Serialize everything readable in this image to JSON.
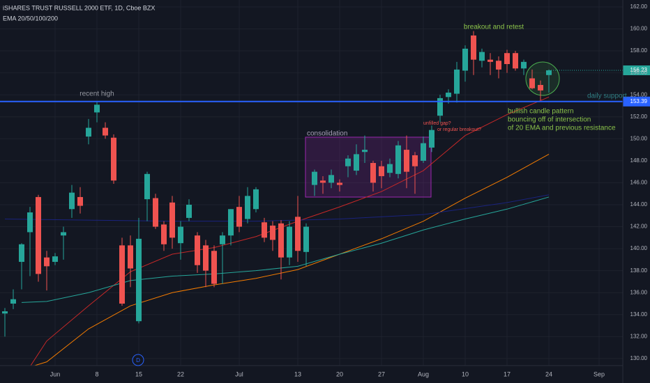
{
  "chart_data": {
    "type": "candlestick",
    "title": "iSHARES TRUST RUSSELL 2000 ETF, 1D, Cboe BZX",
    "subtitle": "EMA 20/50/100/200",
    "categories": [
      null,
      null,
      null,
      null,
      null,
      null,
      "Jun",
      null,
      null,
      null,
      null,
      "8",
      null,
      null,
      null,
      null,
      "15",
      null,
      null,
      null,
      null,
      "22",
      null,
      null,
      null,
      null,
      null,
      null,
      "Jul",
      null,
      null,
      null,
      null,
      null,
      null,
      "13",
      null,
      null,
      null,
      null,
      "20",
      null,
      null,
      null,
      null,
      "27",
      null,
      null,
      null,
      null,
      "Aug",
      null,
      null,
      null,
      null,
      "10",
      null,
      null,
      null,
      null,
      "17",
      null,
      null,
      null,
      null,
      "24",
      null,
      null,
      null,
      null,
      null,
      "Sep"
    ],
    "open": [
      134.1,
      135.0,
      138.8,
      141.5,
      144.7,
      139.2,
      138.8,
      141.2,
      143.6,
      144.7,
      150.2,
      152.4,
      151.0,
      150.1,
      140.3,
      140.3,
      133.4,
      144.5,
      144.6,
      142.2,
      144.2,
      140.5,
      142.8,
      141.2,
      140.3,
      139.8,
      140.4,
      141.2,
      143.8,
      142.7,
      143.6,
      142.4,
      142.1,
      142.3,
      139.2,
      142.9,
      139.7,
      145.8,
      146.2,
      146.0,
      146.0,
      147.5,
      147.1,
      148.8,
      147.8,
      147.5,
      146.9,
      146.8,
      149.0,
      148.5,
      148.0,
      149.2,
      152.1,
      153.8,
      154.1,
      156.2,
      159.4,
      157.1,
      157.2,
      157.1,
      157.8,
      157.8,
      156.4,
      155.5,
      154.9,
      155.8,
      null,
      null,
      null,
      null,
      null,
      null
    ],
    "high": [
      134.6,
      136.3,
      140.5,
      143.8,
      144.9,
      139.8,
      139.6,
      142.0,
      145.8,
      145.6,
      151.8,
      153.4,
      151.5,
      150.4,
      141.0,
      141.2,
      142.8,
      147.0,
      145.0,
      142.5,
      144.8,
      142.5,
      144.5,
      141.5,
      140.8,
      140.3,
      141.5,
      143.6,
      144.8,
      145.6,
      145.6,
      142.8,
      142.5,
      142.6,
      142.5,
      144.8,
      142.3,
      147.2,
      146.6,
      147.2,
      146.3,
      148.5,
      149.5,
      150.3,
      148.0,
      148.0,
      148.2,
      149.8,
      150.3,
      148.8,
      150.2,
      151.2,
      154.0,
      154.5,
      157.0,
      158.5,
      159.8,
      158.2,
      157.8,
      157.5,
      158.1,
      158.0,
      157.2,
      156.3,
      155.3,
      156.3,
      null,
      null,
      null,
      null,
      null,
      null
    ],
    "low": [
      132.0,
      134.5,
      136.3,
      137.5,
      137.0,
      136.2,
      138.5,
      139.0,
      142.8,
      143.2,
      149.5,
      151.5,
      150.0,
      145.9,
      134.8,
      136.5,
      133.2,
      142.5,
      141.8,
      139.8,
      140.0,
      139.0,
      142.5,
      137.8,
      136.5,
      136.5,
      136.8,
      140.3,
      141.5,
      142.3,
      143.3,
      140.6,
      139.8,
      137.2,
      138.5,
      138.8,
      138.4,
      144.8,
      145.0,
      145.5,
      145.2,
      146.5,
      146.7,
      147.8,
      145.2,
      145.5,
      146.5,
      146.4,
      145.5,
      145.0,
      147.8,
      148.8,
      151.5,
      153.2,
      153.3,
      155.2,
      155.8,
      156.5,
      155.8,
      155.5,
      156.0,
      156.2,
      155.8,
      154.5,
      153.5,
      154.2,
      null,
      null,
      null,
      null,
      null,
      null
    ],
    "close": [
      134.3,
      135.4,
      140.4,
      143.3,
      137.7,
      138.4,
      139.3,
      141.5,
      145.1,
      143.9,
      151.0,
      153.1,
      150.3,
      146.2,
      135.0,
      138.2,
      140.9,
      146.8,
      142.0,
      140.4,
      141.0,
      142.0,
      144.0,
      138.5,
      138.0,
      136.8,
      141.2,
      143.6,
      142.0,
      144.8,
      145.4,
      141.0,
      140.8,
      139.2,
      142.0,
      139.8,
      142.0,
      147.0,
      146.0,
      146.7,
      145.8,
      148.2,
      148.6,
      149.0,
      146.0,
      146.6,
      147.7,
      149.4,
      147.0,
      147.5,
      149.6,
      150.8,
      153.7,
      154.2,
      156.3,
      158.2,
      157.2,
      157.9,
      157.0,
      156.3,
      156.8,
      156.4,
      157.0,
      154.6,
      154.4,
      156.23,
      null,
      null,
      null,
      null,
      null,
      null
    ],
    "up_color": "#26a69a",
    "down_color": "#ef5350",
    "lines": [
      {
        "color": "#c62828",
        "x": [
          2,
          5,
          10,
          15,
          20,
          25,
          30,
          35,
          40,
          45,
          50,
          55,
          60,
          65
        ],
        "values": [
          128.1,
          131.6,
          134.8,
          137.9,
          139.5,
          140.1,
          141.1,
          142.5,
          143.8,
          145.2,
          147.1,
          150.3,
          152.2,
          153.8
        ]
      },
      {
        "color": "#f57c00",
        "x": [
          2,
          5,
          10,
          15,
          20,
          25,
          30,
          35,
          40,
          45,
          50,
          55,
          60,
          65
        ],
        "values": [
          129.0,
          129.7,
          132.7,
          134.8,
          136.0,
          136.7,
          137.3,
          138.1,
          139.5,
          140.9,
          142.5,
          144.6,
          146.5,
          148.6
        ]
      },
      {
        "color": "#26a69a",
        "x": [
          2,
          5,
          10,
          15,
          20,
          25,
          30,
          35,
          40,
          45,
          50,
          55,
          60,
          65
        ],
        "values": [
          135.1,
          135.2,
          136.0,
          137.1,
          137.5,
          137.7,
          138.0,
          138.4,
          139.5,
          140.5,
          141.7,
          142.7,
          143.6,
          144.7
        ]
      },
      {
        "color": "#1a237e",
        "x": [
          0,
          10,
          20,
          30,
          40,
          50,
          60,
          65
        ],
        "values": [
          142.7,
          142.6,
          142.5,
          142.5,
          142.7,
          143.1,
          144.2,
          144.9
        ]
      }
    ],
    "support": 153.39,
    "support_color": "#2962ff",
    "ylim": [
      129.36,
      162.63
    ],
    "yticks": [
      {
        "value": 130,
        "label": "130.00"
      },
      {
        "value": 132,
        "label": "132.00"
      },
      {
        "value": 134,
        "label": "134.00"
      },
      {
        "value": 136,
        "label": "136.00"
      },
      {
        "value": 138,
        "label": "138.00"
      },
      {
        "value": 140,
        "label": "140.00"
      },
      {
        "value": 142,
        "label": "142.00"
      },
      {
        "value": 144,
        "label": "144.00"
      },
      {
        "value": 146,
        "label": "146.00"
      },
      {
        "value": 148,
        "label": "148.00"
      },
      {
        "value": 150,
        "label": "150.00"
      },
      {
        "value": 152,
        "label": "152.00"
      },
      {
        "value": 154,
        "label": "154.00"
      },
      {
        "value": 156,
        "label": "156.00"
      },
      {
        "value": 158,
        "label": "158.00"
      },
      {
        "value": 160,
        "label": "160.00"
      },
      {
        "value": 162,
        "label": "162.00"
      }
    ],
    "grid": true,
    "annotations": {
      "recent_high": "recent high",
      "consolidation": "consolidation",
      "gap_1": "unfilled gap?",
      "gap_2": "or regular breakout?",
      "breakout": "breakout and retest",
      "daily_support": "daily support",
      "bullish_1": "bullish candle pattern",
      "bullish_2": "bouncing off of intersection",
      "bullish_3": "of 20 EMA and previous resistance",
      "event": "D"
    }
  }
}
